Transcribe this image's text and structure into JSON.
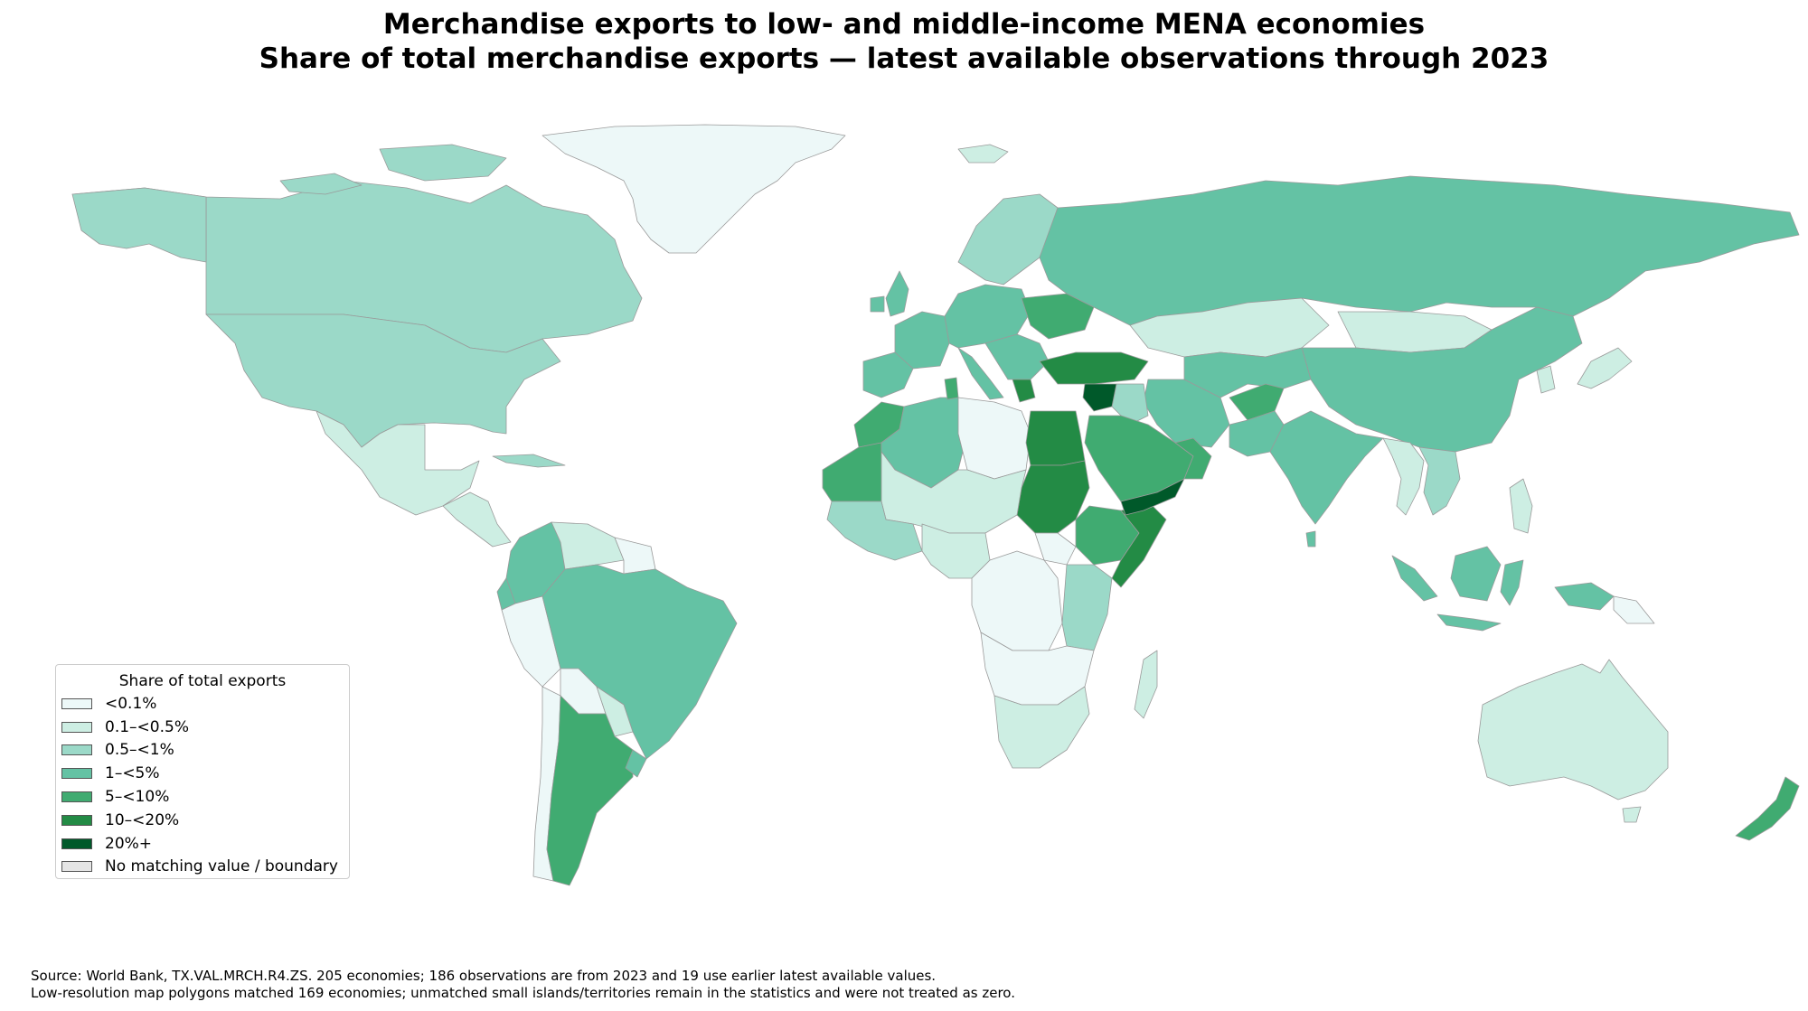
{
  "title": {
    "line1": "Merchandise exports to low- and middle-income MENA economies",
    "line2": "Share of total merchandise exports — latest available observations through 2023"
  },
  "legend": {
    "title": "Share of total exports",
    "items": [
      {
        "label": "<0.1%",
        "color": "#edf8f8"
      },
      {
        "label": "0.1–<0.5%",
        "color": "#cdeee3"
      },
      {
        "label": "0.5–<1%",
        "color": "#9bd9c8"
      },
      {
        "label": "1–<5%",
        "color": "#64c2a4"
      },
      {
        "label": "5–<10%",
        "color": "#40ab71"
      },
      {
        "label": "10–<20%",
        "color": "#238b45"
      },
      {
        "label": "20%+",
        "color": "#00592a"
      },
      {
        "label": "No matching value / boundary",
        "color": "#e5e5e5"
      }
    ]
  },
  "source": {
    "line1": "Source: World Bank, TX.VAL.MRCH.R4.ZS. 205 economies; 186 observations are from 2023 and 19 use earlier latest available values.",
    "line2": "Low-resolution map polygons matched 169 economies; unmatched small islands/territories remain in the statistics and were not treated as zero."
  }
}
